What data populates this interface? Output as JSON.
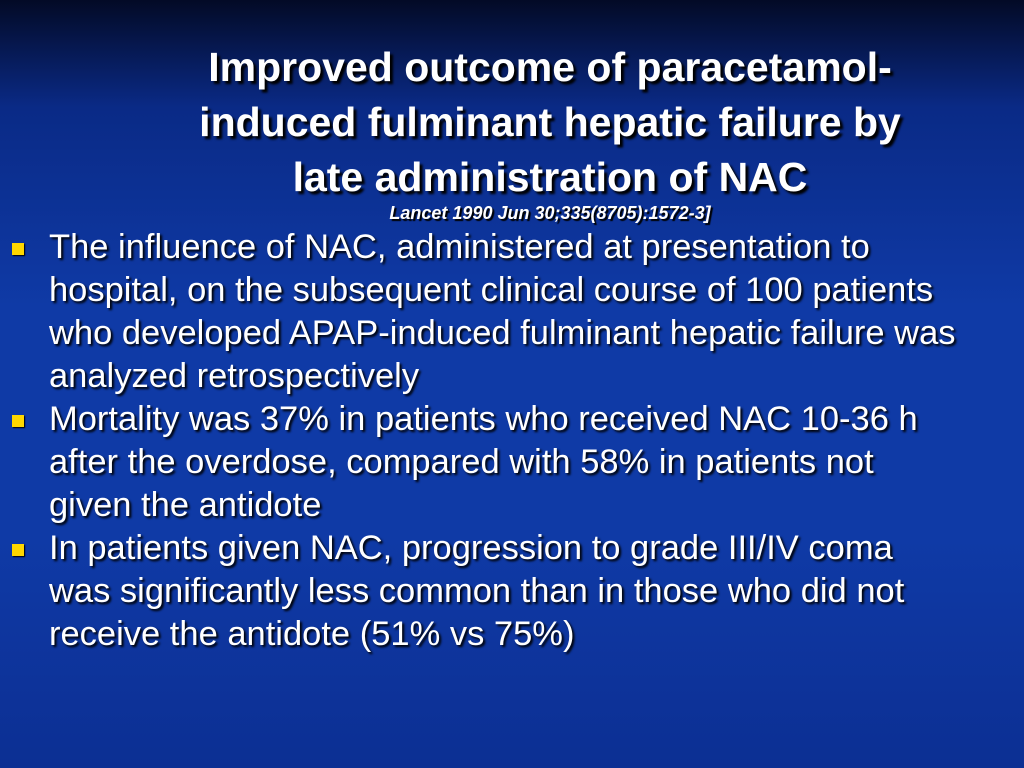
{
  "slide": {
    "title": [
      "Improved outcome of paracetamol-",
      "induced fulminant hepatic failure by",
      "late administration of NAC"
    ],
    "citation": "Lancet  1990 Jun 30;335(8705):1572-3]",
    "bullets": [
      "The influence of NAC, administered at presentation to hospital, on the subsequent clinical course of 100 patients who developed APAP-induced fulminant hepatic failure was analyzed retrospectively",
      "Mortality was 37% in patients who received NAC 10-36 h after the overdose, compared with 58% in patients not given the antidote",
      "In patients given NAC, progression to grade III/IV coma was significantly less common than in those who did not receive the antidote (51% vs 75%)"
    ]
  }
}
